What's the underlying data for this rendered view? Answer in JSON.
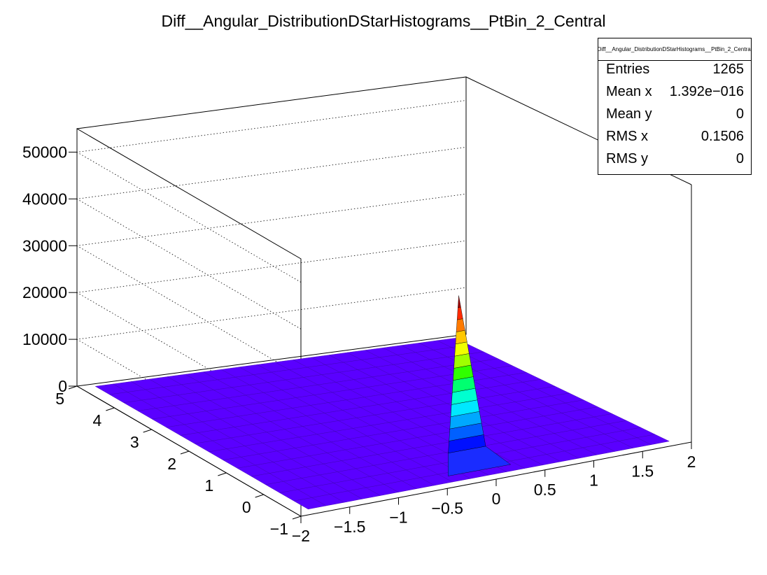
{
  "chart_data": {
    "type": "lego2d",
    "title": "Diff__Angular_DistributionDStarHistograms__PtBin_2_Central",
    "xlabel": "",
    "ylabel": "",
    "zlabel": "",
    "xlim": [
      -2,
      2
    ],
    "ylim": [
      -1,
      5
    ],
    "zlim": [
      0,
      55000
    ],
    "x_ticks": [
      "−2",
      "−1.5",
      "−1",
      "−0.5",
      "0",
      "0.5",
      "1",
      "1.5",
      "2"
    ],
    "y_ticks": [
      "−1",
      "0",
      "1",
      "2",
      "3",
      "4",
      "5"
    ],
    "z_ticks": [
      "0",
      "10000",
      "20000",
      "30000",
      "40000",
      "50000"
    ],
    "peak": {
      "x": 0,
      "y": 0,
      "z": 35000
    },
    "grid": true,
    "colors": {
      "surface": "#5a00ff",
      "peak": "#a10000"
    }
  },
  "stats": {
    "title": "Diff__Angular_DistributionDStarHistograms__PtBin_2_Central",
    "rows": [
      {
        "label": "Entries",
        "value": "1265"
      },
      {
        "label": "Mean x",
        "value": "1.392e−016"
      },
      {
        "label": "Mean y",
        "value": "0"
      },
      {
        "label": "RMS x",
        "value": "0.1506"
      },
      {
        "label": "RMS y",
        "value": "0"
      }
    ]
  }
}
